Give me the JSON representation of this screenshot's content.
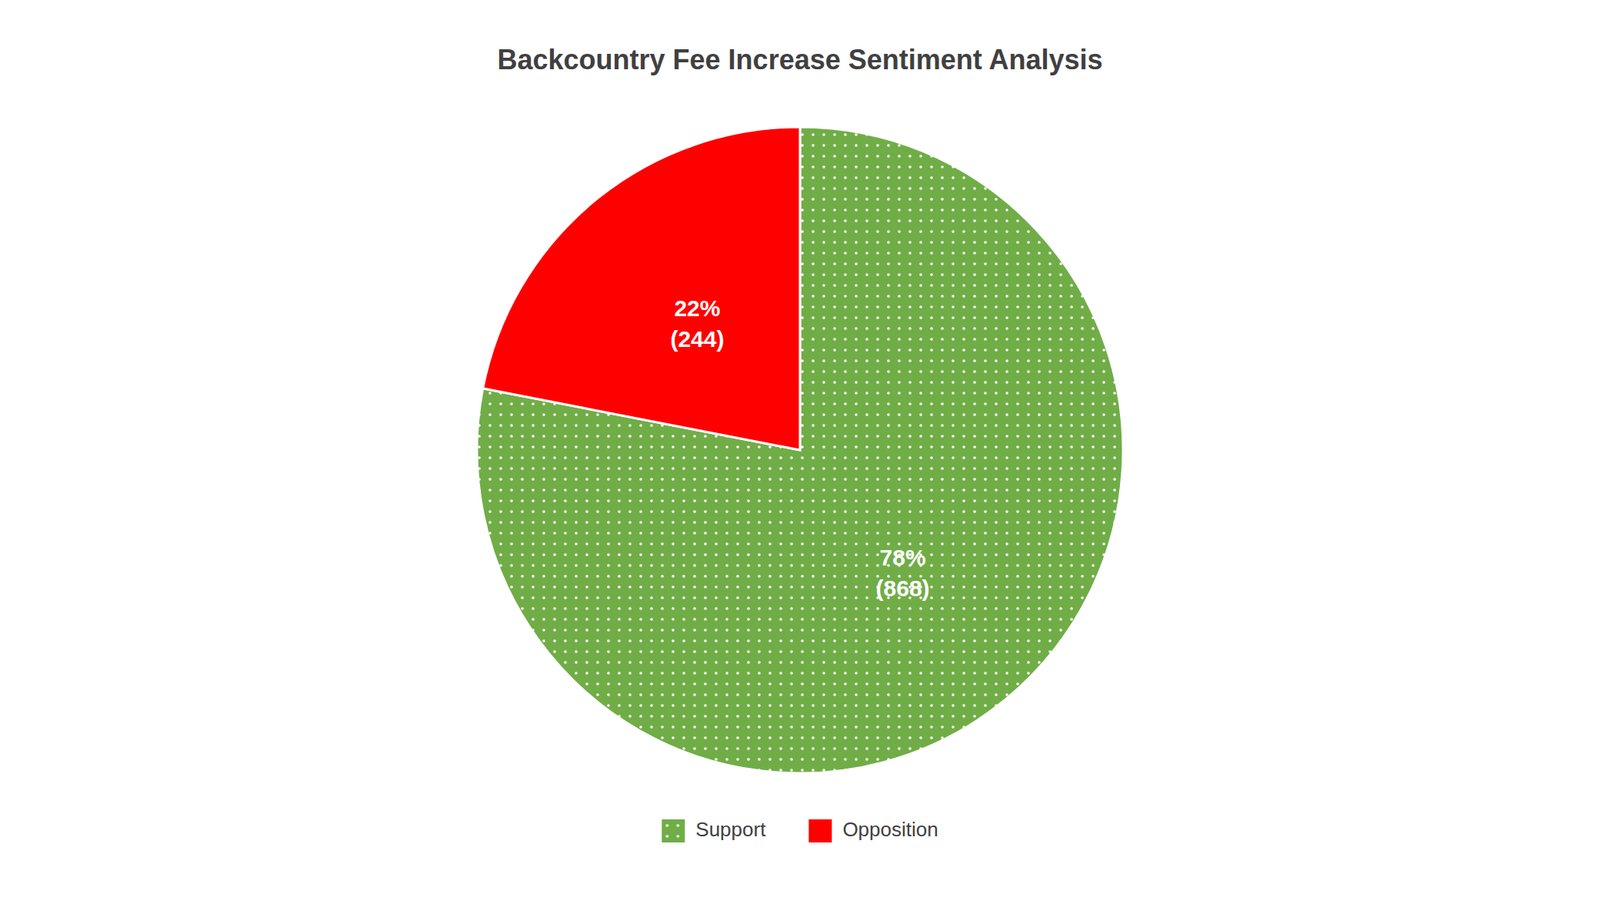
{
  "chart_data": {
    "type": "pie",
    "title": "Backcountry Fee Increase Sentiment Analysis",
    "categories": [
      "Support",
      "Opposition"
    ],
    "values": [
      868,
      244
    ],
    "value_labels": [
      "78%\n(868)",
      "22%\n(244)"
    ],
    "colors": [
      "#70ad47",
      "#ff0000"
    ],
    "data_labels": true,
    "legend": "bottom"
  }
}
